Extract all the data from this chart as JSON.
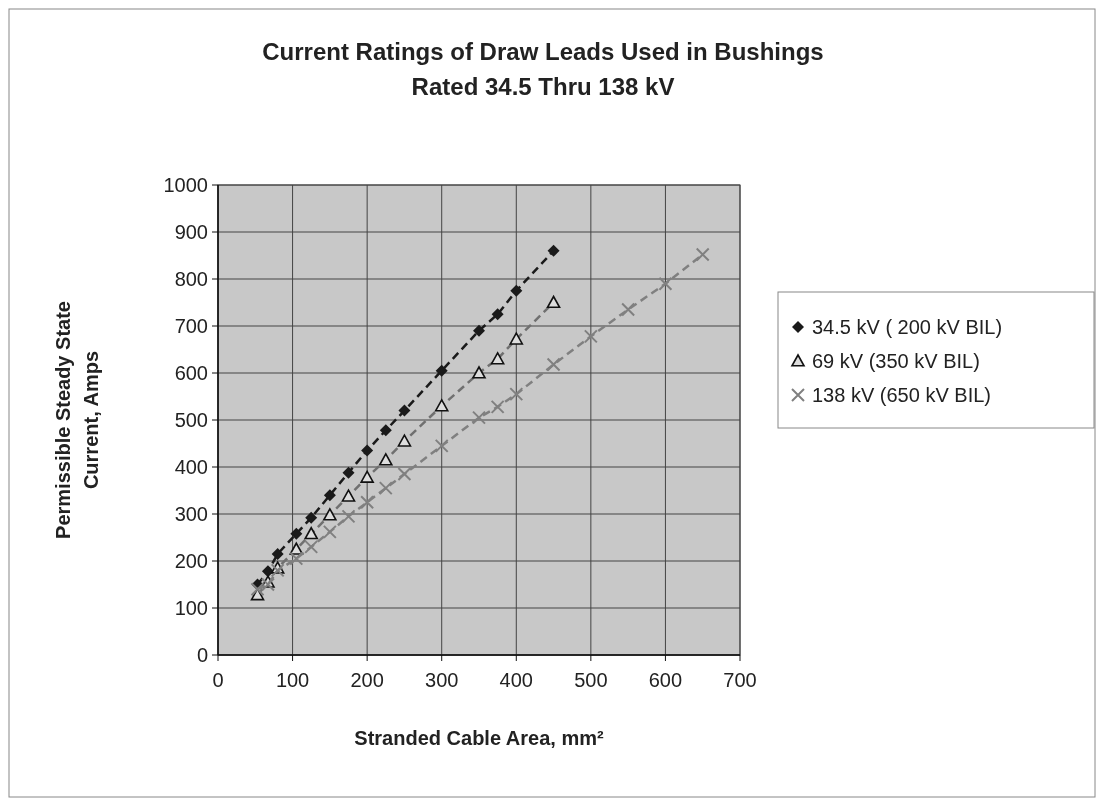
{
  "chart_data": {
    "type": "line",
    "title": "Current Ratings of Draw Leads Used in Bushings Rated 34.5 Thru 138 kV",
    "xlabel": "Stranded Cable Area, mm²",
    "ylabel": "Permissible Steady State Current, Amps",
    "xlim": [
      0,
      700
    ],
    "xticks": [
      0,
      100,
      200,
      300,
      400,
      500,
      600,
      700
    ],
    "ylim": [
      0,
      1000
    ],
    "yticks": [
      0,
      100,
      200,
      300,
      400,
      500,
      600,
      700,
      800,
      900,
      1000
    ],
    "grid": true,
    "legend": "right",
    "line_style": "dashed",
    "series": [
      {
        "name": "34.5 kV ( 200 kV BIL)",
        "color": "#1a1a1a",
        "marker": "diamond",
        "x": [
          53,
          67,
          80,
          105,
          125,
          150,
          175,
          200,
          225,
          250,
          300,
          350,
          375,
          400,
          450
        ],
        "values": [
          150,
          178,
          215,
          258,
          292,
          340,
          388,
          435,
          478,
          520,
          605,
          690,
          725,
          775,
          860
        ]
      },
      {
        "name": "69 kV (350 kV BIL)",
        "color": "#707070",
        "marker": "triangle",
        "x": [
          53,
          67,
          80,
          105,
          125,
          150,
          175,
          200,
          225,
          250,
          300,
          350,
          375,
          400,
          450
        ],
        "values": [
          128,
          155,
          185,
          225,
          258,
          298,
          338,
          378,
          415,
          455,
          530,
          600,
          630,
          672,
          750
        ]
      },
      {
        "name": "138 kV (650 kV BIL)",
        "color": "#808080",
        "marker": "cross",
        "x": [
          53,
          67,
          80,
          105,
          125,
          150,
          175,
          200,
          225,
          250,
          300,
          350,
          375,
          400,
          450,
          500,
          550,
          600,
          650
        ],
        "values": [
          140,
          150,
          180,
          205,
          230,
          262,
          295,
          325,
          355,
          385,
          445,
          505,
          528,
          555,
          618,
          678,
          735,
          790,
          852
        ]
      }
    ]
  }
}
